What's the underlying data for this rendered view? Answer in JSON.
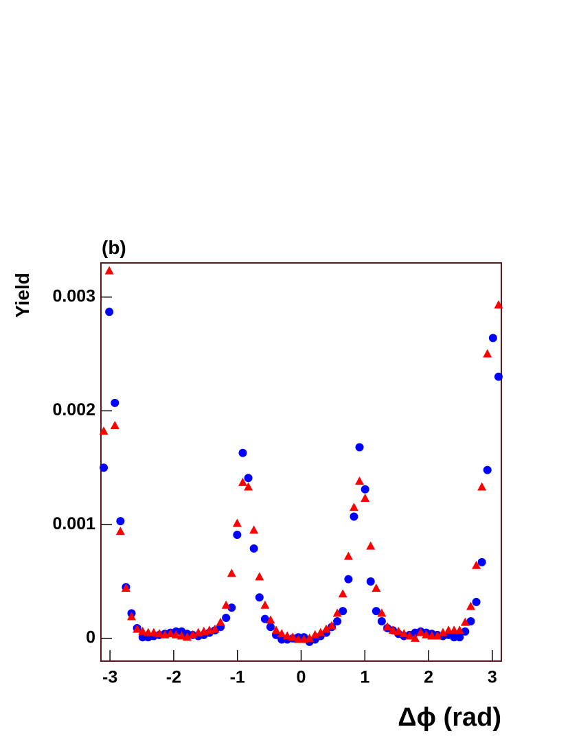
{
  "chart_data": {
    "type": "scatter",
    "title": "(b)",
    "y_label": "Yield",
    "x_label": "Δϕ (rad)",
    "x": [
      -3.098,
      -3.011,
      -2.923,
      -2.836,
      -2.749,
      -2.662,
      -2.574,
      -2.487,
      -2.4,
      -2.313,
      -2.225,
      -2.138,
      -2.051,
      -1.963,
      -1.876,
      -1.789,
      -1.702,
      -1.614,
      -1.527,
      -1.44,
      -1.353,
      -1.265,
      -1.178,
      -1.091,
      -1.004,
      -0.916,
      -0.829,
      -0.742,
      -0.654,
      -0.567,
      -0.48,
      -0.393,
      -0.305,
      -0.218,
      -0.131,
      -0.044,
      0.044,
      0.131,
      0.218,
      0.305,
      0.393,
      0.48,
      0.567,
      0.654,
      0.742,
      0.829,
      0.916,
      1.004,
      1.091,
      1.178,
      1.265,
      1.353,
      1.44,
      1.527,
      1.614,
      1.702,
      1.789,
      1.876,
      1.963,
      2.051,
      2.138,
      2.225,
      2.313,
      2.4,
      2.487,
      2.574,
      2.662,
      2.749,
      2.836,
      2.923,
      3.011,
      3.098
    ],
    "series": [
      {
        "color": "#0000ff",
        "marker": "circle",
        "values": [
          0.0015,
          0.00287,
          0.00207,
          0.00103,
          0.00045,
          0.00022,
          9e-05,
          1e-05,
          1e-05,
          2e-05,
          3e-05,
          4e-05,
          5e-05,
          6e-05,
          6e-05,
          4e-05,
          3e-05,
          2e-05,
          3e-05,
          5e-05,
          7e-05,
          0.0001,
          0.00018,
          0.00027,
          0.00091,
          0.00163,
          0.00141,
          0.00079,
          0.00036,
          0.00017,
          0.0001,
          3e-05,
          -1e-05,
          -1e-05,
          0,
          1e-05,
          1e-05,
          -3e-05,
          -1e-05,
          2e-05,
          5e-05,
          0.0001,
          0.00015,
          0.00024,
          0.00052,
          0.00107,
          0.00168,
          0.00131,
          0.0005,
          0.00024,
          0.00015,
          9e-05,
          7e-05,
          4e-05,
          2e-05,
          3e-05,
          5e-05,
          6e-05,
          5e-05,
          4e-05,
          3e-05,
          2e-05,
          3e-05,
          1e-05,
          1e-05,
          6e-05,
          0.00015,
          0.00032,
          0.00067,
          0.00148,
          0.00264,
          0.0023
        ]
      },
      {
        "color": "#ff0000",
        "marker": "triangle",
        "values": [
          0.00182,
          0.00323,
          0.00187,
          0.00094,
          0.00044,
          0.00019,
          8e-05,
          6e-05,
          5e-05,
          5e-05,
          4e-05,
          3e-05,
          4e-05,
          3e-05,
          2e-05,
          1e-05,
          3e-05,
          5e-05,
          6e-05,
          7e-05,
          8e-05,
          0.00014,
          0.00029,
          0.00057,
          0.00101,
          0.00137,
          0.00133,
          0.00095,
          0.00054,
          0.00029,
          0.00016,
          7e-05,
          4e-05,
          2e-05,
          1e-05,
          -1e-05,
          -1e-05,
          0,
          3e-05,
          5e-05,
          8e-05,
          0.00011,
          0.00022,
          0.00039,
          0.00072,
          0.00115,
          0.00138,
          0.00123,
          0.00081,
          0.00044,
          0.00022,
          0.0001,
          7e-05,
          6e-05,
          4e-05,
          2e-05,
          0,
          5e-05,
          3e-05,
          2e-05,
          2e-05,
          5e-05,
          7e-05,
          7e-05,
          7e-05,
          0.00014,
          0.00028,
          0.00064,
          0.00133,
          0.0025,
          null,
          0.00293
        ]
      }
    ],
    "xlim": [
      -3.1416,
      3.1416
    ],
    "xticks": [
      -3,
      -2,
      -1,
      0,
      1,
      2,
      3
    ],
    "ylim": [
      -0.0002,
      0.0033
    ],
    "yticks": [
      0,
      0.001,
      0.002,
      0.003
    ]
  }
}
